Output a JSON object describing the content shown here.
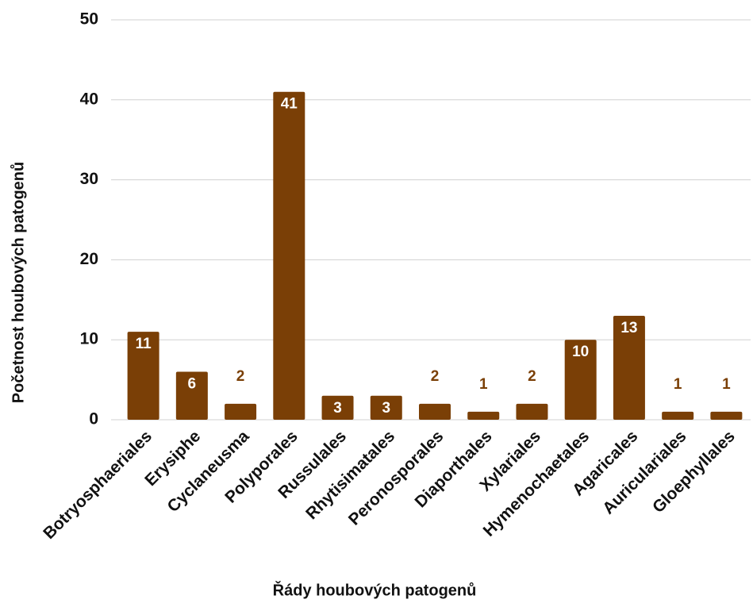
{
  "chart_data": {
    "type": "bar",
    "x_label": "Řády houbových patogenů",
    "y_label": "Početnost houbových patogenů",
    "categories": [
      "Botryosphaeriales",
      "Erysiphe",
      "Cyclaneusma",
      "Polyporales",
      "Russulales",
      "Rhytisimatales",
      "Peronosporales",
      "Diaporthales",
      "Xylariales",
      "Hymenochaetales",
      "Agaricales",
      "Auriculariales",
      "Gloephyllales"
    ],
    "values": [
      11,
      6,
      2,
      41,
      3,
      3,
      2,
      1,
      2,
      10,
      13,
      1,
      1
    ],
    "color": "#7a3f06",
    "ylim": [
      0,
      50
    ],
    "yticks": [
      0,
      10,
      20,
      30,
      40,
      50
    ],
    "grid": true
  }
}
